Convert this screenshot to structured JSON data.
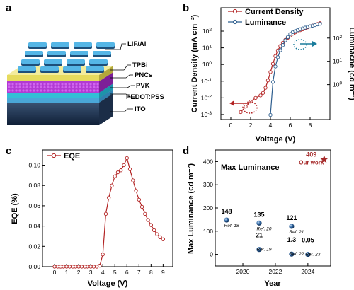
{
  "panels": {
    "a": {
      "letter": "a",
      "layers": [
        "LiF/Al",
        "TPBi",
        "PNCs",
        "PVK",
        "PEDOT:PSS",
        "ITO"
      ]
    },
    "b": {
      "letter": "b"
    },
    "c": {
      "letter": "c"
    },
    "d": {
      "letter": "d"
    }
  },
  "colors": {
    "red": "#b22222",
    "blue": "#2f5f8f"
  },
  "chart_data": [
    {
      "panel": "b",
      "type": "line",
      "xlabel": "Voltage (V)",
      "ylabel": "Current Density (mA cm⁻²)",
      "ylabel2": "Luminacne (cd m⁻²)",
      "xlim": [
        -1,
        10
      ],
      "xticks": [
        0,
        2,
        4,
        6,
        8
      ],
      "ylim_log": [
        -3.3,
        3.4
      ],
      "yticks_exp": [
        -3,
        -2,
        -1,
        0,
        1,
        2
      ],
      "y2lim_log": [
        -1.5,
        3.3
      ],
      "y2ticks_exp": [
        0,
        1,
        2
      ],
      "series": [
        {
          "name": "Current Density",
          "axis": "left",
          "color": "#b22222",
          "x": [
            1.0,
            1.5,
            2.0,
            2.5,
            3.0,
            3.25,
            3.5,
            3.75,
            4.0,
            4.25,
            4.5,
            4.75,
            5.0,
            5.25,
            5.5,
            5.75,
            6.0,
            6.25,
            6.5,
            6.75,
            7.0,
            7.25,
            7.5,
            7.75,
            8.0,
            8.25,
            8.5,
            8.75,
            9.0
          ],
          "y": [
            0.0014,
            0.003,
            0.006,
            0.01,
            0.014,
            0.02,
            0.04,
            0.11,
            0.35,
            1.1,
            3.2,
            7,
            13,
            20,
            30,
            40,
            55,
            70,
            85,
            100,
            115,
            130,
            150,
            170,
            190,
            215,
            240,
            265,
            300
          ]
        },
        {
          "name": "Luminance",
          "axis": "right",
          "color": "#2f5f8f",
          "x": [
            4.0,
            4.25,
            4.5,
            4.75,
            5.0,
            5.25,
            5.5,
            5.75,
            6.0,
            6.25,
            6.5,
            6.75,
            7.0,
            7.25,
            7.5,
            7.75,
            8.0,
            8.25,
            8.5,
            8.75,
            9.0
          ],
          "y": [
            0.05,
            1.3,
            6,
            15,
            30,
            50,
            80,
            110,
            150,
            180,
            200,
            220,
            240,
            260,
            280,
            300,
            320,
            340,
            360,
            385,
            409
          ]
        }
      ]
    },
    {
      "panel": "c",
      "type": "line",
      "xlabel": "Voltage (V)",
      "ylabel": "EQE (%)",
      "xlim": [
        -1,
        9.8
      ],
      "xticks": [
        0,
        1,
        2,
        3,
        4,
        5,
        6,
        7,
        8,
        9
      ],
      "ylim": [
        0,
        0.115
      ],
      "yticks": [
        "0.00",
        "0.02",
        "0.04",
        "0.06",
        "0.08",
        "0.10"
      ],
      "series": [
        {
          "name": "EQE",
          "color": "#b22222",
          "x": [
            0,
            0.25,
            0.5,
            0.75,
            1.0,
            1.25,
            1.5,
            1.75,
            2.0,
            2.25,
            2.5,
            2.75,
            3.0,
            3.25,
            3.5,
            3.75,
            4.0,
            4.25,
            4.5,
            4.75,
            5.0,
            5.25,
            5.5,
            5.75,
            6.0,
            6.25,
            6.5,
            6.75,
            7.0,
            7.25,
            7.5,
            7.75,
            8.0,
            8.25,
            8.5,
            8.75,
            9.0
          ],
          "y": [
            0,
            0,
            0,
            0,
            0,
            0,
            0,
            0,
            0,
            0,
            0,
            0,
            0,
            0,
            0,
            0.001,
            0.012,
            0.052,
            0.068,
            0.08,
            0.089,
            0.093,
            0.095,
            0.1,
            0.107,
            0.096,
            0.085,
            0.075,
            0.066,
            0.059,
            0.052,
            0.046,
            0.041,
            0.036,
            0.032,
            0.029,
            0.027
          ]
        }
      ]
    },
    {
      "panel": "d",
      "type": "scatter",
      "title": "Max Luminance",
      "xlabel": "Year",
      "ylabel": "Max Luminance (cd m⁻²)",
      "xlim": [
        2018.3,
        2025.4
      ],
      "xticks": [
        2020,
        2022,
        2024
      ],
      "ylim": [
        -50,
        450
      ],
      "yticks": [
        0,
        100,
        200,
        300,
        400
      ],
      "points": [
        {
          "x": 2019,
          "y": 148,
          "label": "148",
          "ref": "Ref. 18"
        },
        {
          "x": 2021,
          "y": 21,
          "label": "21",
          "ref": "Ref. 19"
        },
        {
          "x": 2021,
          "y": 135,
          "label": "135",
          "ref": "Ref. 20"
        },
        {
          "x": 2023,
          "y": 121,
          "label": "121",
          "ref": "Ref. 21"
        },
        {
          "x": 2023,
          "y": 1.3,
          "label": "1.3",
          "ref": "Ref. 22"
        },
        {
          "x": 2024,
          "y": 0.05,
          "label": "0.05",
          "ref": "Ref. 23"
        }
      ],
      "highlight": {
        "x": 2025,
        "y": 409,
        "label": "409",
        "note": "Our work",
        "color": "#a52a2a"
      }
    }
  ]
}
